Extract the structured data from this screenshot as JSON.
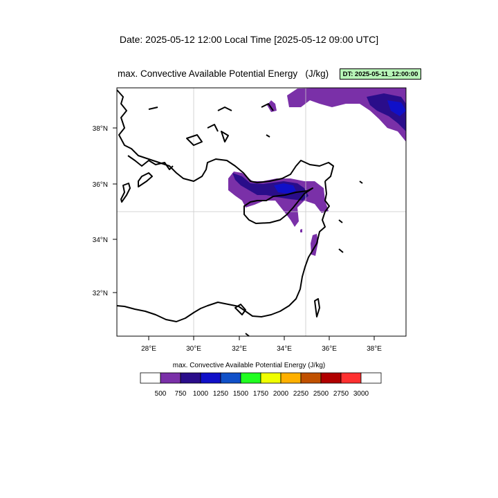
{
  "header": {
    "date_line": "Date: 2025-05-12  12:00 Local Time [2025-05-12  09:00 UTC]",
    "plot_title": "max. Convective Available Potential Energy   (J/kg)",
    "dt_badge": "DT: 2025-05-11_12:00:00",
    "dt_badge_color": "#b8f5b8"
  },
  "map": {
    "lon_ticks": [
      "28°E",
      "30°E",
      "32°E",
      "34°E",
      "36°E",
      "38°E"
    ],
    "lat_ticks": [
      "38°N",
      "36°N",
      "34°N",
      "32°N"
    ],
    "grid_lines": true,
    "field_colors": {
      "500-750": "#7a30a8",
      "750-1000": "#2a0d8a",
      "1000-1250": "#1010c8"
    }
  },
  "colorbar": {
    "title": "max. Convective Available Potential Energy  (J/kg)",
    "labels": [
      "500",
      "750",
      "1000",
      "1250",
      "1500",
      "1750",
      "2000",
      "2250",
      "2500",
      "2750",
      "3000"
    ],
    "colors": [
      "#ffffff",
      "#7a30a8",
      "#2a0d8a",
      "#1010c8",
      "#1050c8",
      "#20ff20",
      "#f0ff00",
      "#ffb000",
      "#c05000",
      "#b00000",
      "#ff3030",
      "#ffffff"
    ]
  }
}
